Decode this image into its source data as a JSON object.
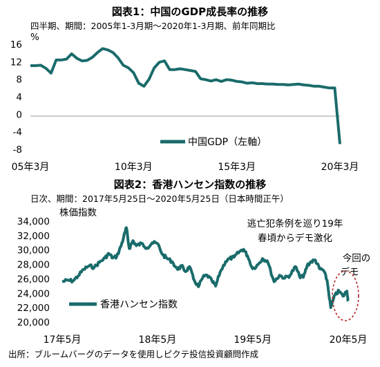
{
  "chart_data": [
    {
      "type": "line",
      "title": "図表1：中国のGDP成長率の推移",
      "subtitle": "四半期、期間：2005年1-3月期〜2020年1-3月期、前年同期比",
      "unit_label": "%",
      "ylim": [
        -8,
        16
      ],
      "y_ticks": [
        "16",
        "12",
        "8",
        "4",
        "0",
        "-4",
        "-8"
      ],
      "x_tick_labels": [
        "05年3月",
        "10年3月",
        "15年3月",
        "20年3月"
      ],
      "grid": false,
      "legend_position": "bottom-right",
      "series": [
        {
          "name": "中国GDP（左軸）",
          "color": "#1a6b6b",
          "x": [
            "2005Q1",
            "2005Q2",
            "2005Q3",
            "2005Q4",
            "2006Q1",
            "2006Q2",
            "2006Q3",
            "2006Q4",
            "2007Q1",
            "2007Q2",
            "2007Q3",
            "2007Q4",
            "2008Q1",
            "2008Q2",
            "2008Q3",
            "2008Q4",
            "2009Q1",
            "2009Q2",
            "2009Q3",
            "2009Q4",
            "2010Q1",
            "2010Q2",
            "2010Q3",
            "2010Q4",
            "2011Q1",
            "2011Q2",
            "2011Q3",
            "2011Q4",
            "2012Q1",
            "2012Q2",
            "2012Q3",
            "2012Q4",
            "2013Q1",
            "2013Q2",
            "2013Q3",
            "2013Q4",
            "2014Q1",
            "2014Q2",
            "2014Q3",
            "2014Q4",
            "2015Q1",
            "2015Q2",
            "2015Q3",
            "2015Q4",
            "2016Q1",
            "2016Q2",
            "2016Q3",
            "2016Q4",
            "2017Q1",
            "2017Q2",
            "2017Q3",
            "2017Q4",
            "2018Q1",
            "2018Q2",
            "2018Q3",
            "2018Q4",
            "2019Q1",
            "2019Q2",
            "2019Q3",
            "2019Q4",
            "2020Q1"
          ],
          "values": [
            11.1,
            11.1,
            11.2,
            10.5,
            9.4,
            12.4,
            12.4,
            12.6,
            13.8,
            12.8,
            12.2,
            12.3,
            13.0,
            14.1,
            15.0,
            14.7,
            14.1,
            12.9,
            11.2,
            10.6,
            9.5,
            7.1,
            6.4,
            8.0,
            10.6,
            11.9,
            12.2,
            10.2,
            10.2,
            10.4,
            10.2,
            10.0,
            9.8,
            8.1,
            7.9,
            7.6,
            7.9,
            7.5,
            7.9,
            7.8,
            7.5,
            7.4,
            7.1,
            7.2,
            7.0,
            7.0,
            6.9,
            6.9,
            6.8,
            6.8,
            6.7,
            6.8,
            6.9,
            6.7,
            6.6,
            6.4,
            6.4,
            6.2,
            6.0,
            6.0,
            -6.8
          ]
        }
      ]
    },
    {
      "type": "line",
      "title": "図表2：香港ハンセン指数の推移",
      "subtitle": "日次、期間：2017年5月25日〜2020年5月25日（日本時間正午）",
      "ylabel": "株価指数",
      "ylim": [
        20000,
        34000
      ],
      "y_ticks": [
        "34,000",
        "32,000",
        "30,000",
        "28,000",
        "26,000",
        "24,000",
        "22,000",
        "20,000"
      ],
      "x_tick_labels": [
        "17年5月",
        "18年5月",
        "19年5月",
        "20年5月"
      ],
      "grid": false,
      "legend_position": "bottom-left",
      "annotations": [
        "逃亡犯条例を巡り19年",
        "春頃からデモ激化",
        "今回の",
        "デモ"
      ],
      "series": [
        {
          "name": "香港ハンセン指数",
          "color": "#1a6b6b",
          "x": [
            "2017-05-25",
            "2017-06-15",
            "2017-07-05",
            "2017-07-25",
            "2017-08-15",
            "2017-09-05",
            "2017-09-25",
            "2017-10-15",
            "2017-11-05",
            "2017-11-20",
            "2017-12-05",
            "2017-12-20",
            "2018-01-05",
            "2018-01-15",
            "2018-01-26",
            "2018-02-06",
            "2018-02-20",
            "2018-03-05",
            "2018-03-25",
            "2018-04-15",
            "2018-05-05",
            "2018-05-25",
            "2018-06-15",
            "2018-06-29",
            "2018-07-20",
            "2018-08-10",
            "2018-08-25",
            "2018-09-10",
            "2018-09-25",
            "2018-10-10",
            "2018-10-29",
            "2018-11-15",
            "2018-12-01",
            "2018-12-20",
            "2019-01-03",
            "2019-01-20",
            "2019-02-10",
            "2019-02-25",
            "2019-03-15",
            "2019-04-05",
            "2019-04-20",
            "2019-05-05",
            "2019-05-25",
            "2019-06-15",
            "2019-07-01",
            "2019-07-20",
            "2019-08-15",
            "2019-09-05",
            "2019-09-25",
            "2019-10-15",
            "2019-11-05",
            "2019-11-20",
            "2019-12-05",
            "2019-12-20",
            "2020-01-05",
            "2020-01-20",
            "2020-02-05",
            "2020-02-20",
            "2020-03-05",
            "2020-03-19",
            "2020-04-05",
            "2020-04-20",
            "2020-05-05",
            "2020-05-20",
            "2020-05-25"
          ],
          "values": [
            25600,
            25800,
            25700,
            26400,
            27300,
            27800,
            27600,
            28300,
            28900,
            29500,
            28900,
            29100,
            30500,
            31700,
            33100,
            30200,
            31300,
            30600,
            30900,
            30300,
            31000,
            30900,
            29300,
            28900,
            28400,
            27300,
            27800,
            27000,
            27700,
            26000,
            24900,
            26200,
            26500,
            25700,
            25000,
            26900,
            28400,
            28800,
            29000,
            29800,
            30100,
            29200,
            27400,
            28000,
            28800,
            28500,
            25600,
            26500,
            26100,
            26500,
            27700,
            26400,
            26200,
            27900,
            28400,
            28600,
            27400,
            27200,
            25800,
            22000,
            23800,
            24300,
            23600,
            24300,
            22900
          ]
        }
      ]
    },
    {
      "type": "text",
      "source": "出所：ブルームバーグのデータを使用しピクテ投信投資顧問作成"
    }
  ]
}
